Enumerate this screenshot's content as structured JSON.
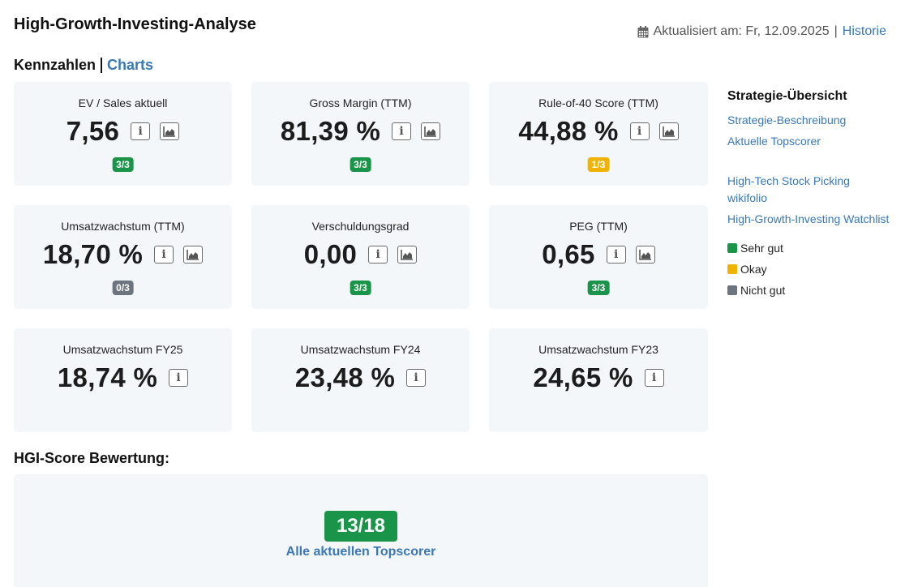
{
  "header": {
    "title": "High-Growth-Investing-Analyse",
    "updated_label": "Aktualisiert am: Fr, 12.09.2025",
    "separator": "|",
    "history_link": "Historie",
    "calendar_icon": "calendar-icon"
  },
  "section_nav": {
    "active": "Kennzahlen",
    "link": "Charts"
  },
  "colors": {
    "green": "#1a9448",
    "yellow": "#f0b400",
    "gray": "#6c757d",
    "link": "#3a78b5"
  },
  "cards": [
    {
      "label": "EV / Sales aktuell",
      "value": "7,56",
      "badge": "3/3",
      "badge_status": "green",
      "has_chart": true
    },
    {
      "label": "Gross Margin (TTM)",
      "value": "81,39 %",
      "badge": "3/3",
      "badge_status": "green",
      "has_chart": true
    },
    {
      "label": "Rule-of-40 Score (TTM)",
      "value": "44,88 %",
      "badge": "1/3",
      "badge_status": "yellow",
      "has_chart": true
    },
    {
      "label": "Umsatzwachstum (TTM)",
      "value": "18,70 %",
      "badge": "0/3",
      "badge_status": "gray",
      "has_chart": true
    },
    {
      "label": "Verschuldungsgrad",
      "value": "0,00",
      "badge": "3/3",
      "badge_status": "green",
      "has_chart": true
    },
    {
      "label": "PEG (TTM)",
      "value": "0,65",
      "badge": "3/3",
      "badge_status": "green",
      "has_chart": true
    },
    {
      "label": "Umsatzwachstum FY25",
      "value": "18,74 %",
      "badge": "",
      "badge_status": "",
      "has_chart": false
    },
    {
      "label": "Umsatzwachstum FY24",
      "value": "23,48 %",
      "badge": "",
      "badge_status": "",
      "has_chart": false
    },
    {
      "label": "Umsatzwachstum FY23",
      "value": "24,65 %",
      "badge": "",
      "badge_status": "",
      "has_chart": false
    }
  ],
  "hgi": {
    "title": "HGI-Score Bewertung:",
    "score": "13/18",
    "link": "Alle aktuellen Topscorer"
  },
  "sidebar": {
    "title": "Strategie-Übersicht",
    "links_a": [
      "Strategie-Beschreibung",
      "Aktuelle Topscorer"
    ],
    "links_b": [
      "High-Tech Stock Picking wikifolio",
      "High-Growth-Investing Watchlist"
    ],
    "legend": [
      {
        "label": "Sehr gut",
        "status": "green"
      },
      {
        "label": "Okay",
        "status": "yellow"
      },
      {
        "label": "Nicht gut",
        "status": "gray"
      }
    ]
  }
}
